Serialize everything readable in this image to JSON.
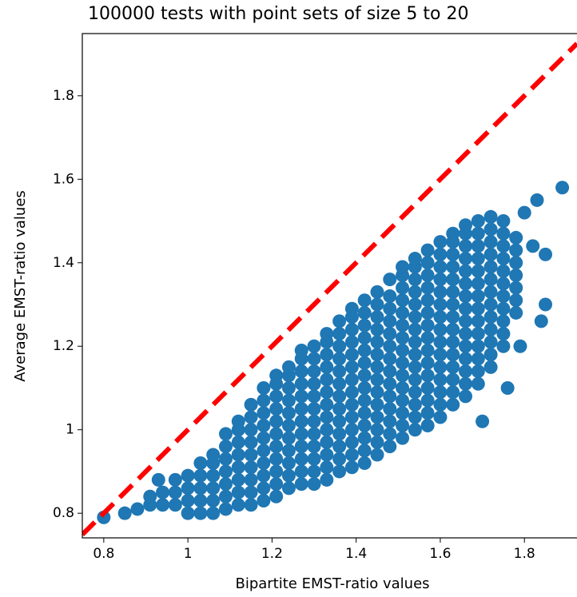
{
  "chart_data": {
    "type": "scatter",
    "title": "100000 tests with point sets of size 5 to 20",
    "xlabel": "Bipartite EMST-ratio values",
    "ylabel": "Average EMST-ratio values",
    "xlim": [
      0.749,
      1.925
    ],
    "ylim": [
      0.741,
      1.949
    ],
    "xticks": [
      0.8,
      1.0,
      1.2,
      1.4,
      1.6,
      1.8
    ],
    "yticks": [
      0.8,
      1.0,
      1.2,
      1.4,
      1.6,
      1.8
    ],
    "series": [
      {
        "type": "scatter",
        "color": "#1f77b4",
        "x": [
          0.88,
          0.91,
          0.91,
          0.94,
          0.94,
          0.97,
          0.97,
          0.97,
          1.0,
          1.0,
          1.0,
          1.0,
          1.03,
          1.03,
          1.03,
          1.03,
          1.03,
          1.06,
          1.06,
          1.06,
          1.06,
          1.06,
          1.06,
          1.09,
          1.09,
          1.09,
          1.09,
          1.09,
          1.09,
          1.09,
          1.12,
          1.12,
          1.12,
          1.12,
          1.12,
          1.12,
          1.12,
          1.12,
          1.15,
          1.15,
          1.15,
          1.15,
          1.15,
          1.15,
          1.15,
          1.15,
          1.15,
          1.18,
          1.18,
          1.18,
          1.18,
          1.18,
          1.18,
          1.18,
          1.18,
          1.18,
          1.18,
          1.21,
          1.21,
          1.21,
          1.21,
          1.21,
          1.21,
          1.21,
          1.21,
          1.21,
          1.21,
          1.21,
          1.24,
          1.24,
          1.24,
          1.24,
          1.24,
          1.24,
          1.24,
          1.24,
          1.24,
          1.24,
          1.24,
          1.27,
          1.27,
          1.27,
          1.27,
          1.27,
          1.27,
          1.27,
          1.27,
          1.27,
          1.27,
          1.27,
          1.27,
          1.3,
          1.3,
          1.3,
          1.3,
          1.3,
          1.3,
          1.3,
          1.3,
          1.3,
          1.3,
          1.3,
          1.3,
          1.33,
          1.33,
          1.33,
          1.33,
          1.33,
          1.33,
          1.33,
          1.33,
          1.33,
          1.33,
          1.33,
          1.33,
          1.33,
          1.36,
          1.36,
          1.36,
          1.36,
          1.36,
          1.36,
          1.36,
          1.36,
          1.36,
          1.36,
          1.36,
          1.36,
          1.36,
          1.39,
          1.39,
          1.39,
          1.39,
          1.39,
          1.39,
          1.39,
          1.39,
          1.39,
          1.39,
          1.39,
          1.39,
          1.39,
          1.39,
          1.42,
          1.42,
          1.42,
          1.42,
          1.42,
          1.42,
          1.42,
          1.42,
          1.42,
          1.42,
          1.42,
          1.42,
          1.42,
          1.42,
          1.45,
          1.45,
          1.45,
          1.45,
          1.45,
          1.45,
          1.45,
          1.45,
          1.45,
          1.45,
          1.45,
          1.45,
          1.45,
          1.45,
          1.48,
          1.48,
          1.48,
          1.48,
          1.48,
          1.48,
          1.48,
          1.48,
          1.48,
          1.48,
          1.48,
          1.48,
          1.48,
          1.48,
          1.51,
          1.51,
          1.51,
          1.51,
          1.51,
          1.51,
          1.51,
          1.51,
          1.51,
          1.51,
          1.51,
          1.51,
          1.51,
          1.51,
          1.51,
          1.54,
          1.54,
          1.54,
          1.54,
          1.54,
          1.54,
          1.54,
          1.54,
          1.54,
          1.54,
          1.54,
          1.54,
          1.54,
          1.54,
          1.54,
          1.57,
          1.57,
          1.57,
          1.57,
          1.57,
          1.57,
          1.57,
          1.57,
          1.57,
          1.57,
          1.57,
          1.57,
          1.57,
          1.57,
          1.57,
          1.6,
          1.6,
          1.6,
          1.6,
          1.6,
          1.6,
          1.6,
          1.6,
          1.6,
          1.6,
          1.6,
          1.6,
          1.6,
          1.6,
          1.6,
          1.63,
          1.63,
          1.63,
          1.63,
          1.63,
          1.63,
          1.63,
          1.63,
          1.63,
          1.63,
          1.63,
          1.63,
          1.63,
          1.63,
          1.63,
          1.66,
          1.66,
          1.66,
          1.66,
          1.66,
          1.66,
          1.66,
          1.66,
          1.66,
          1.66,
          1.66,
          1.66,
          1.66,
          1.66,
          1.66,
          1.69,
          1.69,
          1.69,
          1.69,
          1.69,
          1.69,
          1.69,
          1.69,
          1.69,
          1.69,
          1.69,
          1.69,
          1.69,
          1.69,
          1.72,
          1.72,
          1.72,
          1.72,
          1.72,
          1.72,
          1.72,
          1.72,
          1.72,
          1.72,
          1.72,
          1.72,
          1.72,
          1.75,
          1.75,
          1.75,
          1.75,
          1.75,
          1.75,
          1.75,
          1.75,
          1.75,
          1.75,
          1.75,
          1.78,
          1.78,
          1.78,
          1.78,
          1.78,
          1.78,
          1.78,
          1.8,
          1.82,
          1.85,
          1.89,
          1.84,
          1.79,
          1.85,
          1.76,
          1.7,
          0.8,
          0.85,
          0.93,
          1.83
        ],
        "values": [
          0.81,
          0.82,
          0.84,
          0.82,
          0.85,
          0.82,
          0.85,
          0.88,
          0.8,
          0.83,
          0.86,
          0.89,
          0.8,
          0.83,
          0.86,
          0.89,
          0.92,
          0.8,
          0.83,
          0.86,
          0.89,
          0.92,
          0.94,
          0.81,
          0.84,
          0.87,
          0.9,
          0.93,
          0.96,
          0.99,
          0.82,
          0.85,
          0.88,
          0.91,
          0.94,
          0.97,
          1.0,
          1.02,
          0.82,
          0.85,
          0.88,
          0.91,
          0.94,
          0.97,
          1.0,
          1.03,
          1.06,
          0.83,
          0.86,
          0.89,
          0.92,
          0.95,
          0.98,
          1.01,
          1.04,
          1.07,
          1.1,
          0.84,
          0.87,
          0.9,
          0.93,
          0.96,
          0.99,
          1.02,
          1.05,
          1.08,
          1.11,
          1.13,
          0.86,
          0.89,
          0.92,
          0.95,
          0.98,
          1.01,
          1.04,
          1.07,
          1.1,
          1.13,
          1.15,
          0.87,
          0.9,
          0.93,
          0.96,
          0.99,
          1.02,
          1.05,
          1.08,
          1.11,
          1.14,
          1.17,
          1.19,
          0.87,
          0.9,
          0.93,
          0.96,
          0.99,
          1.02,
          1.05,
          1.08,
          1.11,
          1.14,
          1.17,
          1.2,
          0.88,
          0.91,
          0.94,
          0.97,
          1.0,
          1.03,
          1.06,
          1.09,
          1.12,
          1.15,
          1.18,
          1.21,
          1.23,
          0.9,
          0.93,
          0.96,
          0.99,
          1.02,
          1.05,
          1.08,
          1.11,
          1.14,
          1.17,
          1.2,
          1.23,
          1.26,
          0.91,
          0.94,
          0.97,
          1.0,
          1.03,
          1.06,
          1.09,
          1.12,
          1.15,
          1.18,
          1.21,
          1.24,
          1.27,
          1.29,
          0.92,
          0.95,
          0.98,
          1.01,
          1.04,
          1.07,
          1.1,
          1.13,
          1.16,
          1.19,
          1.22,
          1.25,
          1.28,
          1.31,
          0.94,
          0.97,
          1.0,
          1.03,
          1.06,
          1.09,
          1.12,
          1.15,
          1.18,
          1.21,
          1.24,
          1.27,
          1.3,
          1.33,
          0.96,
          0.99,
          1.02,
          1.05,
          1.08,
          1.11,
          1.14,
          1.17,
          1.2,
          1.23,
          1.26,
          1.29,
          1.32,
          1.36,
          0.98,
          1.01,
          1.04,
          1.07,
          1.1,
          1.13,
          1.16,
          1.19,
          1.22,
          1.25,
          1.28,
          1.31,
          1.34,
          1.37,
          1.39,
          1.0,
          1.03,
          1.06,
          1.09,
          1.12,
          1.15,
          1.18,
          1.21,
          1.24,
          1.27,
          1.3,
          1.33,
          1.36,
          1.39,
          1.41,
          1.01,
          1.04,
          1.07,
          1.1,
          1.13,
          1.16,
          1.19,
          1.22,
          1.25,
          1.28,
          1.31,
          1.34,
          1.37,
          1.4,
          1.43,
          1.03,
          1.06,
          1.09,
          1.12,
          1.15,
          1.18,
          1.21,
          1.24,
          1.27,
          1.3,
          1.33,
          1.36,
          1.39,
          1.42,
          1.45,
          1.06,
          1.09,
          1.12,
          1.15,
          1.18,
          1.21,
          1.24,
          1.27,
          1.3,
          1.33,
          1.36,
          1.39,
          1.42,
          1.45,
          1.47,
          1.08,
          1.11,
          1.14,
          1.17,
          1.2,
          1.23,
          1.26,
          1.29,
          1.32,
          1.35,
          1.38,
          1.41,
          1.44,
          1.47,
          1.49,
          1.11,
          1.14,
          1.17,
          1.2,
          1.23,
          1.26,
          1.29,
          1.32,
          1.35,
          1.38,
          1.41,
          1.44,
          1.47,
          1.5,
          1.15,
          1.18,
          1.21,
          1.24,
          1.27,
          1.3,
          1.33,
          1.36,
          1.39,
          1.42,
          1.45,
          1.48,
          1.51,
          1.2,
          1.23,
          1.26,
          1.29,
          1.32,
          1.35,
          1.38,
          1.41,
          1.44,
          1.47,
          1.5,
          1.28,
          1.31,
          1.34,
          1.37,
          1.4,
          1.43,
          1.46,
          1.52,
          1.44,
          1.42,
          1.58,
          1.26,
          1.2,
          1.3,
          1.1,
          1.02,
          0.79,
          0.8,
          0.88,
          1.55
        ]
      },
      {
        "type": "line",
        "color": "#ff0000",
        "dashed": true,
        "x": [
          0.749,
          1.925
        ],
        "values": [
          0.749,
          1.925
        ]
      }
    ]
  }
}
